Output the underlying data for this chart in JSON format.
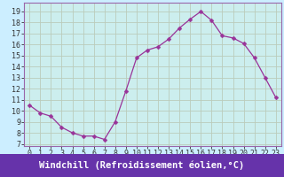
{
  "x": [
    0,
    1,
    2,
    3,
    4,
    5,
    6,
    7,
    8,
    9,
    10,
    11,
    12,
    13,
    14,
    15,
    16,
    17,
    18,
    19,
    20,
    21,
    22,
    23
  ],
  "y": [
    10.5,
    9.8,
    9.5,
    8.5,
    8.0,
    7.7,
    7.7,
    7.4,
    9.0,
    11.8,
    14.8,
    15.5,
    15.8,
    16.5,
    17.5,
    18.3,
    19.0,
    18.2,
    16.8,
    16.6,
    16.1,
    14.8,
    13.0,
    11.2
  ],
  "line_color": "#993399",
  "marker": "D",
  "marker_size": 2.5,
  "fig_bg_color": "#cceeff",
  "plot_bg_color": "#cceeee",
  "grid_color": "#bbccbb",
  "xlabel": "Windchill (Refroidissement éolien,°C)",
  "ylabel_ticks": [
    7,
    8,
    9,
    10,
    11,
    12,
    13,
    14,
    15,
    16,
    17,
    18,
    19
  ],
  "xlabel_ticks": [
    0,
    1,
    2,
    3,
    4,
    5,
    6,
    7,
    8,
    9,
    10,
    11,
    12,
    13,
    14,
    15,
    16,
    17,
    18,
    19,
    20,
    21,
    22,
    23
  ],
  "ylim": [
    6.8,
    19.8
  ],
  "xlim": [
    -0.5,
    23.5
  ],
  "tick_fontsize": 6,
  "label_color": "#ffffff",
  "label_bg": "#6633aa",
  "spine_color": "#9966aa",
  "xlabel_fontsize": 7.5,
  "label_bar_height": 0.13
}
